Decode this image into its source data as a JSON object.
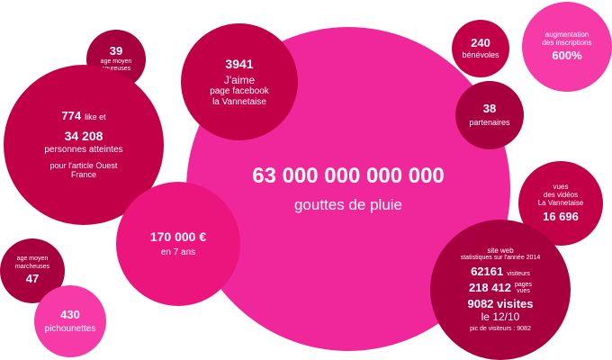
{
  "bubbles": {
    "main": {
      "value": "63 000 000 000 000",
      "label": "gouttes de pluie"
    },
    "age_coureuses": {
      "value": "39",
      "label1": "age moyen",
      "label2": "coureuses"
    },
    "facebook": {
      "value": "3941",
      "line1": "J'aime",
      "line2": "page facebook",
      "line3": "la Vannetaise"
    },
    "ouest_france": {
      "like_value": "774",
      "like_label": "like et",
      "reach_value": "34 208",
      "reach_label": "personnes atteintes",
      "article1": "pour l'article Ouest",
      "article2": "France"
    },
    "budget": {
      "value": "170 000 €",
      "label": "en 7 ans"
    },
    "age_marcheuses": {
      "label1": "age moyen",
      "label2": "marcheuses",
      "value": "47"
    },
    "pichounettes": {
      "value": "430",
      "label": "pichounettes"
    },
    "benevoles": {
      "value": "240",
      "label": "bénévoles"
    },
    "inscriptions": {
      "label1": "augmentation",
      "label2": "des inscriptions",
      "value": "600%"
    },
    "partenaires": {
      "value": "38",
      "label": "partenaires"
    },
    "videos": {
      "label1": "vues",
      "label2": "des vidéos",
      "label3": "La Vannetaise",
      "value": "16 696"
    },
    "web": {
      "title1": "site web",
      "title2": "statistiques sur l'année 2014",
      "visitors_value": "62161",
      "visitors_label": "visiteurs",
      "pages_value": "218 412",
      "pages_label1": "pages",
      "pages_label2": "vues",
      "visits_value": "9082 visites",
      "visits_date": "le 12/10",
      "peak": "pic de visiteurs : 9082"
    }
  }
}
